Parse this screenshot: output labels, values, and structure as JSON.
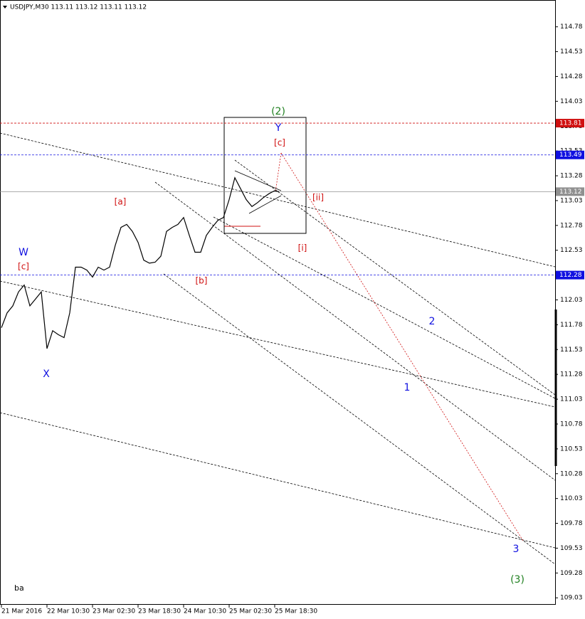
{
  "chart_data": {
    "type": "line",
    "title": "USDJPY,M30  113.11 113.12 113.11 113.12",
    "footer": "ba",
    "x": [
      1,
      5,
      9,
      13,
      17,
      21,
      25,
      29,
      33,
      37,
      41,
      45,
      49,
      53,
      57,
      61,
      65,
      69,
      73,
      77,
      81,
      85,
      89,
      93,
      97,
      101,
      105,
      109,
      113,
      117,
      121,
      125,
      129,
      133,
      137,
      141,
      145,
      149,
      153,
      157,
      161,
      165,
      169,
      173,
      177,
      181,
      185,
      189,
      193,
      196
    ],
    "series": [
      {
        "name": "USDJPY",
        "color": "#000000",
        "values": [
          111.75,
          111.9,
          111.97,
          112.11,
          112.18,
          111.97,
          112.04,
          112.11,
          111.54,
          111.72,
          111.68,
          111.65,
          111.9,
          112.36,
          112.36,
          112.33,
          112.26,
          112.36,
          112.33,
          112.36,
          112.58,
          112.76,
          112.79,
          112.72,
          112.61,
          112.43,
          112.4,
          112.41,
          112.47,
          112.72,
          112.76,
          112.79,
          112.86,
          112.68,
          112.51,
          112.51,
          112.68,
          112.76,
          112.83,
          112.86,
          113.04,
          113.26,
          113.15,
          113.04,
          112.97,
          113.01,
          113.06,
          113.1,
          113.13,
          113.12
        ]
      }
    ],
    "xlim": [
      0,
      390
    ],
    "xticks": [
      {
        "value": 1,
        "label": "21 Mar 2016"
      },
      {
        "value": 33,
        "label": "22 Mar 10:30"
      },
      {
        "value": 65,
        "label": "23 Mar 02:30"
      },
      {
        "value": 97,
        "label": "23 Mar 18:30"
      },
      {
        "value": 129,
        "label": "24 Mar 10:30"
      },
      {
        "value": 161,
        "label": "25 Mar 02:30"
      },
      {
        "value": 193,
        "label": "25 Mar 18:30"
      }
    ],
    "ylim": [
      108.96,
      115.05
    ],
    "yticks": [
      114.78,
      114.53,
      114.28,
      114.03,
      113.78,
      113.53,
      113.28,
      113.03,
      112.78,
      112.53,
      112.03,
      111.78,
      111.53,
      111.28,
      111.03,
      110.78,
      110.53,
      110.28,
      110.03,
      109.78,
      109.53,
      109.28,
      109.03
    ],
    "levels": [
      {
        "value": 113.81,
        "color": "#d01010",
        "style": "dashed"
      },
      {
        "value": 113.49,
        "color": "#1010e0",
        "style": "dashed"
      },
      {
        "value": 113.12,
        "color": "#909090",
        "style": "solid"
      },
      {
        "value": 112.28,
        "color": "#1010e0",
        "style": "dashed"
      }
    ],
    "annotations": [
      "(2)",
      "Y",
      "[c]",
      "[ii]",
      "[i]",
      "[a]",
      "[b]",
      "W",
      "[c]",
      "X",
      "2",
      "1",
      "3",
      "(3)"
    ]
  }
}
